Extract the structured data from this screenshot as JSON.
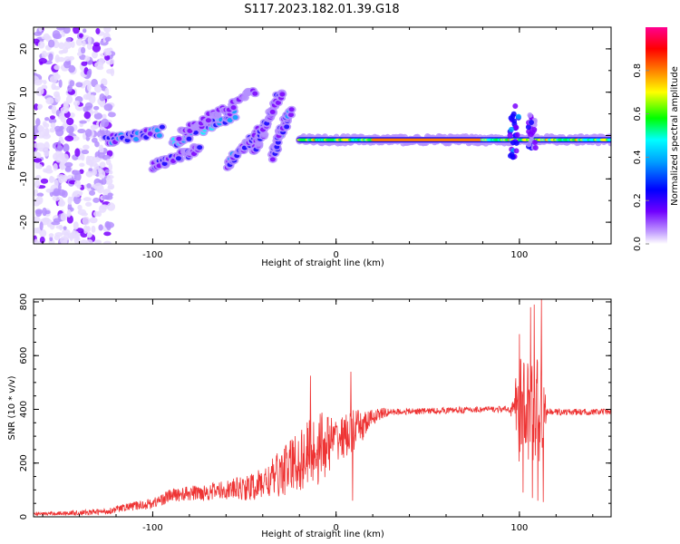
{
  "figure_title": "S117.2023.182.01.39.G18",
  "colors": {
    "snr_line": "#ee3333",
    "axis": "#000000",
    "colormap": [
      "#f5eeff",
      "#8a00ff",
      "#2200ff",
      "#00a0ff",
      "#00ffff",
      "#00ff00",
      "#ffff00",
      "#ff8000",
      "#ff0000",
      "#ff0080"
    ]
  },
  "chart_data": [
    {
      "type": "heatmap",
      "title": "",
      "xlabel": "Height of straight line (km)",
      "ylabel": "Frequency (Hz)",
      "xlim": [
        -165,
        150
      ],
      "ylim": [
        -25,
        25
      ],
      "x_ticks": [
        -100,
        0,
        100
      ],
      "y_ticks": [
        -20,
        -10,
        0,
        10,
        20
      ],
      "colorbar": {
        "label": "Normalized spectral amplitude",
        "range": [
          0,
          1
        ],
        "ticks": [
          "0.0",
          "0.2",
          "0.4",
          "0.6",
          "0.8"
        ]
      },
      "features": [
        {
          "kind": "noise",
          "x_range": [
            -165,
            -122
          ],
          "y_range": [
            -25,
            25
          ],
          "amplitude": 0.15
        },
        {
          "kind": "streak",
          "from": [
            -125,
            -1
          ],
          "to": [
            -95,
            1
          ],
          "amplitude": 0.4
        },
        {
          "kind": "streak",
          "from": [
            -100,
            -7
          ],
          "to": [
            -75,
            -3
          ],
          "amplitude": 0.3
        },
        {
          "kind": "streak",
          "from": [
            -90,
            -2
          ],
          "to": [
            -55,
            5
          ],
          "amplitude": 0.45
        },
        {
          "kind": "streak",
          "from": [
            -85,
            0
          ],
          "to": [
            -45,
            10
          ],
          "amplitude": 0.25
        },
        {
          "kind": "streak",
          "from": [
            -60,
            -7
          ],
          "to": [
            -40,
            2
          ],
          "amplitude": 0.35
        },
        {
          "kind": "streak",
          "from": [
            -45,
            -4
          ],
          "to": [
            -30,
            10
          ],
          "amplitude": 0.3
        },
        {
          "kind": "streak",
          "from": [
            -35,
            -5
          ],
          "to": [
            -25,
            6
          ],
          "amplitude": 0.35
        },
        {
          "kind": "line",
          "x_range": [
            -20,
            150
          ],
          "y": -1,
          "amplitude": 0.9
        },
        {
          "kind": "burst",
          "x": 97,
          "y_range": [
            -5,
            7
          ],
          "amplitude": 0.4
        },
        {
          "kind": "burst",
          "x": 107,
          "y_range": [
            -3,
            5
          ],
          "amplitude": 0.3
        }
      ]
    },
    {
      "type": "line",
      "title": "",
      "xlabel": "Height of straight line (km)",
      "ylabel": "SNR (10 * v/v)",
      "xlim": [
        -165,
        150
      ],
      "ylim": [
        0,
        810
      ],
      "x_ticks": [
        -100,
        0,
        100
      ],
      "y_ticks": [
        0,
        200,
        400,
        600,
        800
      ],
      "envelope": {
        "x": [
          -165,
          -140,
          -125,
          -115,
          -100,
          -90,
          -75,
          -60,
          -45,
          -35,
          -25,
          -15,
          -10,
          -5,
          0,
          5,
          10,
          15,
          20,
          25,
          30,
          40,
          50,
          60,
          70,
          80,
          90,
          95,
          100,
          105,
          110,
          115,
          125,
          135,
          145,
          150
        ],
        "y": [
          10,
          15,
          20,
          35,
          50,
          80,
          90,
          100,
          110,
          140,
          190,
          230,
          260,
          270,
          290,
          300,
          320,
          340,
          370,
          385,
          390,
          392,
          394,
          396,
          398,
          400,
          400,
          400,
          395,
          395,
          395,
          390,
          390,
          390,
          390,
          390
        ]
      },
      "noise_amplitude": {
        "x": [
          -165,
          -120,
          -90,
          -60,
          -40,
          -20,
          -10,
          0,
          10,
          20,
          30,
          95,
          100,
          112,
          115,
          150
        ],
        "y": [
          6,
          12,
          25,
          35,
          60,
          120,
          150,
          80,
          80,
          30,
          12,
          12,
          200,
          200,
          12,
          12
        ]
      },
      "spikes": [
        {
          "x": -14,
          "y": 525
        },
        {
          "x": 8,
          "y": 540
        },
        {
          "x": 9,
          "y": 60
        },
        {
          "x": 100,
          "y": 680
        },
        {
          "x": 102,
          "y": 90
        },
        {
          "x": 106,
          "y": 780
        },
        {
          "x": 107,
          "y": 70
        },
        {
          "x": 108,
          "y": 790
        },
        {
          "x": 110,
          "y": 60
        },
        {
          "x": 112,
          "y": 810
        },
        {
          "x": 113,
          "y": 55
        }
      ]
    }
  ]
}
